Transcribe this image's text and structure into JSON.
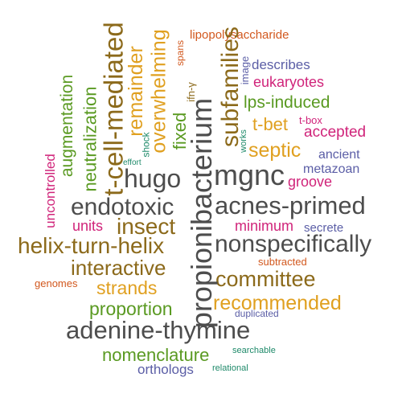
{
  "colors": {
    "gray": "#4d4d4d",
    "brown": "#8c6a1b",
    "gold": "#e0a020",
    "green": "#5a9a22",
    "purple": "#5b5ea6",
    "magenta": "#d0247a",
    "orange": "#d2581e",
    "teal": "#1f8a6a"
  },
  "words": [
    {
      "text": "lipopolysaccharide",
      "color": "orange"
    },
    {
      "text": "t-cell-mediated",
      "color": "brown"
    },
    {
      "text": "remainder",
      "color": "gold"
    },
    {
      "text": "overwhelming",
      "color": "gold"
    },
    {
      "text": "spans",
      "color": "orange"
    },
    {
      "text": "fixed",
      "color": "green"
    },
    {
      "text": "ifn-γ",
      "color": "brown"
    },
    {
      "text": "subfamilies",
      "color": "brown"
    },
    {
      "text": "image",
      "color": "purple"
    },
    {
      "text": "describes",
      "color": "purple"
    },
    {
      "text": "eukaryotes",
      "color": "magenta"
    },
    {
      "text": "lps-induced",
      "color": "green"
    },
    {
      "text": "t-box",
      "color": "magenta"
    },
    {
      "text": "t-bet",
      "color": "gold"
    },
    {
      "text": "accepted",
      "color": "magenta"
    },
    {
      "text": "works",
      "color": "teal"
    },
    {
      "text": "septic",
      "color": "gold"
    },
    {
      "text": "ancient",
      "color": "purple"
    },
    {
      "text": "metazoan",
      "color": "purple"
    },
    {
      "text": "groove",
      "color": "magenta"
    },
    {
      "text": "augmentation",
      "color": "green"
    },
    {
      "text": "neutralization",
      "color": "green"
    },
    {
      "text": "uncontrolled",
      "color": "magenta"
    },
    {
      "text": "effort",
      "color": "teal"
    },
    {
      "text": "shock",
      "color": "teal"
    },
    {
      "text": "hugo",
      "color": "gray"
    },
    {
      "text": "mgnc",
      "color": "gray"
    },
    {
      "text": "propionibacterium",
      "color": "gray"
    },
    {
      "text": "endotoxic",
      "color": "gray"
    },
    {
      "text": "acnes-primed",
      "color": "gray"
    },
    {
      "text": "insect",
      "color": "brown"
    },
    {
      "text": "units",
      "color": "magenta"
    },
    {
      "text": "minimum",
      "color": "magenta"
    },
    {
      "text": "secrete",
      "color": "purple"
    },
    {
      "text": "helix-turn-helix",
      "color": "brown"
    },
    {
      "text": "nonspecifically",
      "color": "gray"
    },
    {
      "text": "interactive",
      "color": "brown"
    },
    {
      "text": "subtracted",
      "color": "orange"
    },
    {
      "text": "committee",
      "color": "brown"
    },
    {
      "text": "genomes",
      "color": "orange"
    },
    {
      "text": "strands",
      "color": "gold"
    },
    {
      "text": "proportion",
      "color": "green"
    },
    {
      "text": "recommended",
      "color": "gold"
    },
    {
      "text": "duplicated",
      "color": "purple"
    },
    {
      "text": "adenine-thymine",
      "color": "gray"
    },
    {
      "text": "nomenclature",
      "color": "green"
    },
    {
      "text": "searchable",
      "color": "teal"
    },
    {
      "text": "orthologs",
      "color": "purple"
    },
    {
      "text": "relational",
      "color": "teal"
    }
  ]
}
